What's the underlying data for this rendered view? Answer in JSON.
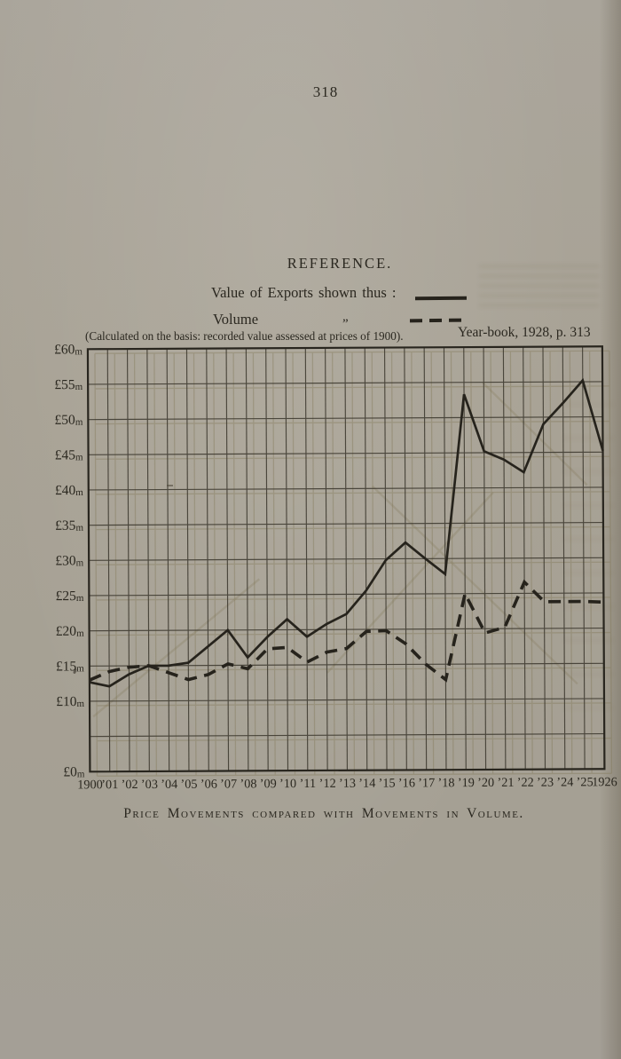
{
  "page": {
    "number": "318",
    "caption": "Price Movements compared with Movements in Volume."
  },
  "reference": {
    "heading": "REFERENCE.",
    "items": [
      {
        "label": "Value of Exports shown thus :",
        "style": "solid"
      },
      {
        "label": "Volume",
        "ditto": "„",
        "style": "dashed"
      }
    ],
    "note": "(Calculated on the basis: recorded value assessed at prices of 1900).",
    "source": "Year-book, 1928, p. 313"
  },
  "chart_data": {
    "type": "line",
    "title": "Price Movements compared with Movements in Volume.",
    "x": [
      1900,
      1901,
      1902,
      1903,
      1904,
      1905,
      1906,
      1907,
      1908,
      1909,
      1910,
      1911,
      1912,
      1913,
      1914,
      1915,
      1916,
      1917,
      1918,
      1919,
      1920,
      1921,
      1922,
      1923,
      1924,
      1925,
      1926
    ],
    "x_tick_labels": [
      "1900",
      "’01",
      "’02",
      "’03",
      "’04",
      "’05",
      "’06",
      "’07",
      "’08",
      "’09",
      "’10",
      "’11",
      "’12",
      "’13",
      "’14",
      "’15",
      "’16",
      "’17",
      "’18",
      "’19",
      "’20",
      "’21",
      "’22",
      "’23",
      "’24",
      "’25",
      "1926"
    ],
    "ylim": [
      0,
      60
    ],
    "y_unit": "£m",
    "y_tick_interval": 5,
    "y_ticks": [
      {
        "value": 60,
        "label": "£60m"
      },
      {
        "value": 55,
        "label": "£55m"
      },
      {
        "value": 50,
        "label": "£50m"
      },
      {
        "value": 45,
        "label": "£45m"
      },
      {
        "value": 40,
        "label": "£40m"
      },
      {
        "value": 35,
        "label": "£35m"
      },
      {
        "value": 30,
        "label": "£30m"
      },
      {
        "value": 25,
        "label": "£25m"
      },
      {
        "value": 20,
        "label": "£20m"
      },
      {
        "value": 15,
        "label": "£15m"
      },
      {
        "value": 10,
        "label": "£10m"
      },
      {
        "value": 0,
        "label": "£0m"
      }
    ],
    "grid": "on",
    "legend_position": "above-chart",
    "series": [
      {
        "name": "Value of Exports",
        "style": "solid",
        "values": [
          12.7,
          12.1,
          13.8,
          15.0,
          15.0,
          15.4,
          17.7,
          20.0,
          16.1,
          19.0,
          21.5,
          19.0,
          20.8,
          22.2,
          25.5,
          29.8,
          32.3,
          30.0,
          27.8,
          53.3,
          45.2,
          44.0,
          42.2,
          49.0,
          52.0,
          55.2,
          45.2
        ]
      },
      {
        "name": "Volume (recorded value assessed at prices of 1900)",
        "style": "dashed",
        "values": [
          13.0,
          14.2,
          14.8,
          15.0,
          14.0,
          13.0,
          13.7,
          15.2,
          14.5,
          17.3,
          17.5,
          15.4,
          16.8,
          17.3,
          19.7,
          19.8,
          17.9,
          15.0,
          12.8,
          25.0,
          19.4,
          20.2,
          26.6,
          23.8,
          23.8,
          23.8,
          23.7
        ]
      }
    ]
  }
}
